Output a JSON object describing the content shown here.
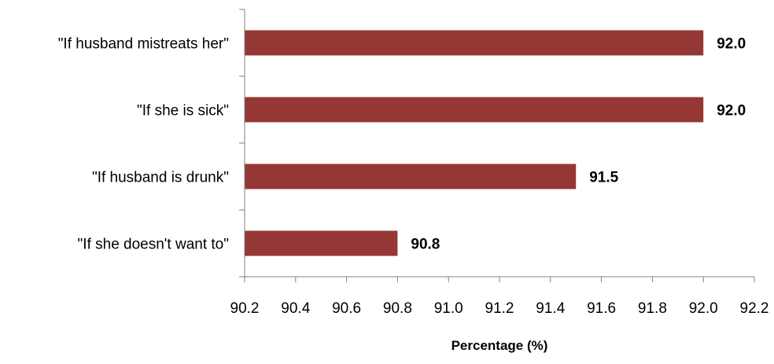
{
  "chart_data": {
    "type": "bar",
    "orientation": "horizontal",
    "categories": [
      "\"If husband mistreats her\"",
      "\"If she is sick\"",
      "\"If husband is drunk\"",
      "\"If she doesn't want to\""
    ],
    "values": [
      92.0,
      92.0,
      91.5,
      90.8
    ],
    "value_labels": [
      "92.0",
      "92.0",
      "91.5",
      "90.8"
    ],
    "xlabel": "Percentage (%)",
    "ylabel": "",
    "xlim": [
      90.2,
      92.2
    ],
    "xticks": [
      90.2,
      90.4,
      90.6,
      90.8,
      91.0,
      91.2,
      91.4,
      91.6,
      91.8,
      92.0,
      92.2
    ],
    "xtick_labels": [
      "90.2",
      "90.4",
      "90.6",
      "90.8",
      "91.0",
      "91.2",
      "91.4",
      "91.6",
      "91.8",
      "92.0",
      "92.2"
    ],
    "grid": false,
    "legend": "none",
    "bar_color": "#953735",
    "axis_color": "#808080"
  }
}
